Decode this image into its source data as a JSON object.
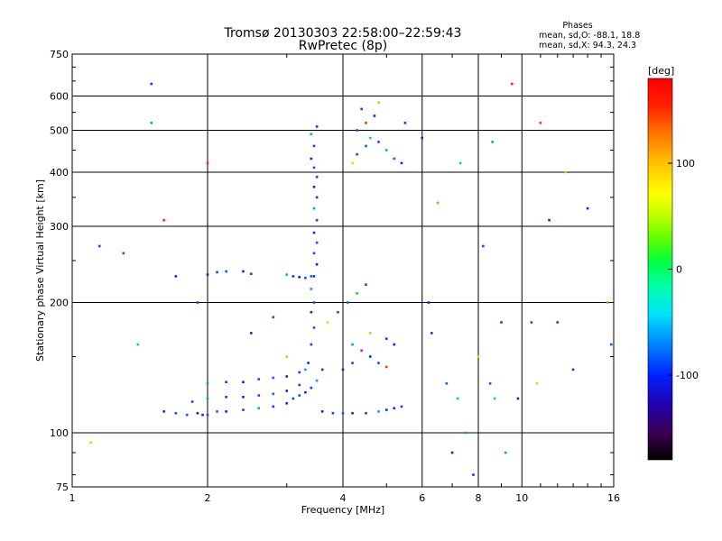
{
  "chart_data": {
    "type": "scatter",
    "title": "Tromsø 20130303 22:58:00–22:59:43",
    "subtitle": "RwPretec (8p)",
    "xlabel": "Frequency [MHz]",
    "ylabel": "Stationary phase Virtual Height [km]",
    "x_scale": "log",
    "y_scale": "log",
    "xlim": [
      1,
      16
    ],
    "ylim": [
      75,
      750
    ],
    "x_ticks": [
      1,
      2,
      4,
      6,
      8,
      10,
      16
    ],
    "y_ticks": [
      75,
      100,
      200,
      300,
      400,
      500,
      600,
      750
    ],
    "grid": true,
    "stats": {
      "title": "Phases",
      "line_o": "mean, sd,O: -88.1, 18.8",
      "line_x": "mean, sd,X:  94.3, 24.3"
    },
    "colorbar": {
      "label": "[deg]",
      "range": [
        -180,
        180
      ],
      "ticks": [
        100,
        0,
        -100
      ],
      "colors": [
        "#000000",
        "#3a0050",
        "#2200aa",
        "#0020ff",
        "#0080ff",
        "#00e0ff",
        "#00ffb0",
        "#00ff40",
        "#60ff00",
        "#c0ff00",
        "#ffff00",
        "#ffc000",
        "#ff7000",
        "#ff2000",
        "#ff0000"
      ]
    },
    "series": [
      {
        "values": [
          [
            1.95,
            110
          ],
          [
            2.0,
            110
          ],
          [
            2.1,
            112
          ],
          [
            2.2,
            112
          ],
          [
            2.4,
            113
          ],
          [
            2.6,
            114
          ],
          [
            2.8,
            115
          ],
          [
            3.0,
            117
          ],
          [
            3.1,
            120
          ],
          [
            3.2,
            122
          ],
          [
            3.3,
            124
          ],
          [
            3.4,
            127
          ],
          [
            3.5,
            132
          ],
          [
            3.6,
            140
          ],
          [
            1.6,
            112
          ],
          [
            1.7,
            111
          ],
          [
            1.8,
            110
          ],
          [
            1.9,
            111
          ],
          [
            1.85,
            118
          ],
          [
            2.0,
            120
          ],
          [
            2.2,
            121
          ],
          [
            2.4,
            121
          ],
          [
            2.6,
            122
          ],
          [
            2.8,
            123
          ],
          [
            3.0,
            125
          ],
          [
            3.2,
            129
          ],
          [
            2.0,
            130
          ],
          [
            2.2,
            131
          ],
          [
            2.4,
            131
          ],
          [
            2.6,
            133
          ],
          [
            2.8,
            134
          ],
          [
            3.0,
            135
          ],
          [
            3.2,
            138
          ],
          [
            3.3,
            140
          ]
        ]
      },
      {
        "values": [
          [
            2.0,
            232
          ],
          [
            2.1,
            235
          ],
          [
            2.2,
            236
          ],
          [
            2.4,
            236
          ],
          [
            2.5,
            233
          ],
          [
            3.0,
            232
          ],
          [
            3.1,
            230
          ],
          [
            3.2,
            229
          ],
          [
            3.3,
            228
          ],
          [
            3.4,
            230
          ]
        ]
      },
      {
        "values": [
          [
            3.35,
            145
          ],
          [
            3.4,
            160
          ],
          [
            3.45,
            175
          ],
          [
            3.4,
            190
          ],
          [
            3.45,
            200
          ],
          [
            3.4,
            215
          ],
          [
            3.45,
            230
          ],
          [
            3.5,
            245
          ],
          [
            3.45,
            260
          ],
          [
            3.5,
            275
          ],
          [
            3.45,
            290
          ],
          [
            3.5,
            310
          ],
          [
            3.45,
            330
          ],
          [
            3.5,
            350
          ],
          [
            3.45,
            370
          ],
          [
            3.5,
            390
          ],
          [
            3.45,
            410
          ],
          [
            3.4,
            430
          ],
          [
            3.45,
            460
          ],
          [
            3.4,
            490
          ],
          [
            3.5,
            510
          ]
        ]
      },
      {
        "values": [
          [
            3.6,
            112
          ],
          [
            3.8,
            111
          ],
          [
            4.0,
            111
          ],
          [
            4.2,
            111
          ],
          [
            4.5,
            111
          ],
          [
            4.8,
            112
          ],
          [
            5.0,
            113
          ],
          [
            5.2,
            114
          ],
          [
            5.4,
            115
          ]
        ]
      },
      {
        "values": [
          [
            3.7,
            180
          ],
          [
            3.9,
            190
          ],
          [
            4.1,
            200
          ],
          [
            4.3,
            210
          ],
          [
            4.5,
            220
          ],
          [
            4.2,
            160
          ],
          [
            4.4,
            155
          ],
          [
            4.6,
            150
          ],
          [
            4.8,
            145
          ],
          [
            5.0,
            142
          ],
          [
            4.0,
            140
          ],
          [
            4.2,
            145
          ],
          [
            4.6,
            170
          ],
          [
            5.0,
            165
          ],
          [
            5.2,
            160
          ]
        ]
      },
      {
        "values": [
          [
            4.2,
            420
          ],
          [
            4.3,
            440
          ],
          [
            4.5,
            460
          ],
          [
            4.6,
            480
          ],
          [
            4.8,
            470
          ],
          [
            5.0,
            450
          ],
          [
            5.2,
            430
          ],
          [
            5.4,
            420
          ],
          [
            4.3,
            500
          ],
          [
            4.5,
            520
          ],
          [
            4.7,
            540
          ],
          [
            4.4,
            560
          ],
          [
            4.8,
            580
          ]
        ]
      },
      {
        "values": [
          [
            1.1,
            95
          ],
          [
            1.15,
            270
          ],
          [
            1.3,
            260
          ],
          [
            1.4,
            160
          ],
          [
            1.5,
            640
          ],
          [
            1.5,
            520
          ],
          [
            1.6,
            310
          ],
          [
            1.7,
            230
          ],
          [
            1.9,
            200
          ],
          [
            2.0,
            420
          ],
          [
            2.5,
            170
          ],
          [
            2.8,
            185
          ],
          [
            3.0,
            150
          ],
          [
            5.5,
            520
          ],
          [
            6.2,
            200
          ],
          [
            6.5,
            340
          ],
          [
            6.8,
            130
          ],
          [
            7.0,
            90
          ],
          [
            7.2,
            120
          ],
          [
            7.5,
            100
          ],
          [
            7.8,
            80
          ],
          [
            8.0,
            150
          ],
          [
            8.2,
            270
          ],
          [
            8.5,
            130
          ],
          [
            8.7,
            120
          ],
          [
            9.0,
            180
          ],
          [
            9.2,
            90
          ],
          [
            9.5,
            640
          ],
          [
            9.8,
            120
          ],
          [
            10.5,
            180
          ],
          [
            11.0,
            520
          ],
          [
            11.5,
            310
          ],
          [
            12.0,
            180
          ],
          [
            12.5,
            400
          ],
          [
            13.0,
            140
          ],
          [
            14.0,
            330
          ],
          [
            15.5,
            200
          ],
          [
            15.8,
            160
          ],
          [
            6.0,
            480
          ],
          [
            7.3,
            420
          ],
          [
            8.6,
            470
          ],
          [
            6.3,
            170
          ],
          [
            10.8,
            130
          ]
        ]
      }
    ]
  }
}
